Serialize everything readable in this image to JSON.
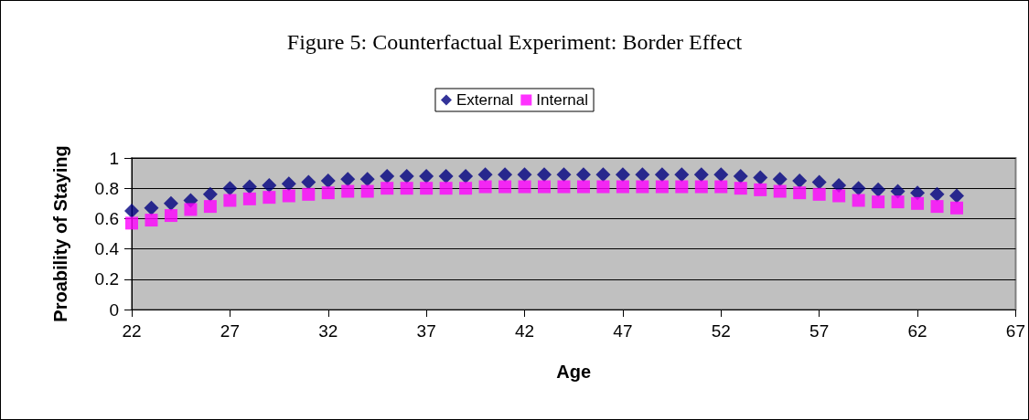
{
  "chart_data": {
    "type": "scatter",
    "title": "Figure 5: Counterfactual Experiment: Border Effect",
    "xlabel": "Age",
    "ylabel": "Proability of Staying",
    "x": [
      22,
      23,
      24,
      25,
      26,
      27,
      28,
      29,
      30,
      31,
      32,
      33,
      34,
      35,
      36,
      37,
      38,
      39,
      40,
      41,
      42,
      43,
      44,
      45,
      46,
      47,
      48,
      49,
      50,
      51,
      52,
      53,
      54,
      55,
      56,
      57,
      58,
      59,
      60,
      61,
      62,
      63,
      64
    ],
    "series": [
      {
        "name": "External",
        "color": "#000080",
        "marker": "diamond",
        "values": [
          0.65,
          0.67,
          0.7,
          0.72,
          0.76,
          0.8,
          0.81,
          0.82,
          0.83,
          0.84,
          0.85,
          0.86,
          0.86,
          0.88,
          0.88,
          0.88,
          0.88,
          0.88,
          0.89,
          0.89,
          0.89,
          0.89,
          0.89,
          0.89,
          0.89,
          0.89,
          0.89,
          0.89,
          0.89,
          0.89,
          0.89,
          0.88,
          0.87,
          0.86,
          0.85,
          0.84,
          0.82,
          0.8,
          0.79,
          0.78,
          0.77,
          0.76,
          0.75
        ]
      },
      {
        "name": "Internal",
        "color": "#ff00ff",
        "marker": "square",
        "values": [
          0.57,
          0.59,
          0.62,
          0.66,
          0.68,
          0.72,
          0.73,
          0.74,
          0.75,
          0.76,
          0.77,
          0.78,
          0.78,
          0.8,
          0.8,
          0.8,
          0.8,
          0.8,
          0.81,
          0.81,
          0.81,
          0.81,
          0.81,
          0.81,
          0.81,
          0.81,
          0.81,
          0.81,
          0.81,
          0.81,
          0.81,
          0.8,
          0.79,
          0.78,
          0.77,
          0.76,
          0.75,
          0.72,
          0.71,
          0.71,
          0.7,
          0.68,
          0.67
        ]
      }
    ],
    "xlim": [
      22,
      67
    ],
    "xticks": [
      22,
      27,
      32,
      37,
      42,
      47,
      52,
      57,
      62,
      67
    ],
    "ylim": [
      0,
      1
    ],
    "yticks": [
      0,
      0.2,
      0.4,
      0.6,
      0.8,
      1
    ],
    "grid": "y",
    "legend": "top"
  }
}
